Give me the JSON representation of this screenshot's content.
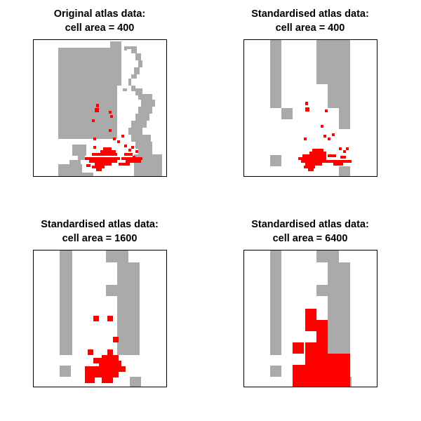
{
  "chart_data": [
    {
      "type": "heatmap",
      "title_line1": "Original atlas data:",
      "title_line2": "cell area = 400",
      "xlabel": "",
      "ylabel": "",
      "grid": false,
      "legend": "none",
      "colors": {
        "absent": "#aaaaaa",
        "present": "#ff0000",
        "background": "#ffffff",
        "frame": "#000000"
      },
      "cell_size": 20,
      "extent": {
        "xmin": 0,
        "xmax": 190,
        "ymin": 0,
        "ymax": 195
      },
      "absent_cells": [
        [
          36,
          12,
          84,
          130
        ],
        [
          110,
          3,
          16,
          63
        ],
        [
          130,
          10,
          10,
          4
        ],
        [
          130,
          14,
          4,
          2
        ],
        [
          140,
          10,
          8,
          10
        ],
        [
          146,
          20,
          8,
          10
        ],
        [
          150,
          30,
          6,
          10
        ],
        [
          144,
          40,
          8,
          10
        ],
        [
          140,
          50,
          8,
          6
        ],
        [
          136,
          56,
          4,
          10
        ],
        [
          100,
          70,
          10,
          6
        ],
        [
          128,
          70,
          6,
          4
        ],
        [
          140,
          66,
          6,
          8
        ],
        [
          146,
          70,
          10,
          10
        ],
        [
          150,
          78,
          20,
          8
        ],
        [
          154,
          86,
          20,
          10
        ],
        [
          150,
          96,
          20,
          10
        ],
        [
          146,
          106,
          20,
          10
        ],
        [
          140,
          116,
          22,
          10
        ],
        [
          136,
          126,
          20,
          10
        ],
        [
          140,
          136,
          28,
          10
        ],
        [
          146,
          146,
          24,
          10
        ],
        [
          150,
          156,
          20,
          8
        ],
        [
          56,
          150,
          20,
          16
        ],
        [
          64,
          166,
          10,
          6
        ],
        [
          52,
          172,
          16,
          6
        ],
        [
          36,
          178,
          34,
          18
        ],
        [
          144,
          164,
          40,
          32
        ],
        [
          70,
          190,
          16,
          6
        ]
      ],
      "present_cells": [
        [
          90,
          92,
          4,
          5
        ],
        [
          88,
          98,
          6,
          6
        ],
        [
          108,
          102,
          4,
          4
        ],
        [
          110,
          108,
          4,
          4
        ],
        [
          84,
          114,
          4,
          4
        ],
        [
          108,
          128,
          4,
          4
        ],
        [
          86,
          140,
          4,
          4
        ],
        [
          114,
          140,
          4,
          4
        ],
        [
          126,
          136,
          4,
          4
        ],
        [
          120,
          144,
          4,
          4
        ],
        [
          86,
          152,
          4,
          4
        ],
        [
          100,
          154,
          12,
          4
        ],
        [
          96,
          158,
          22,
          4
        ],
        [
          84,
          162,
          36,
          4
        ],
        [
          110,
          160,
          8,
          4
        ],
        [
          130,
          150,
          4,
          4
        ],
        [
          136,
          156,
          4,
          4
        ],
        [
          130,
          162,
          12,
          4
        ],
        [
          74,
          168,
          50,
          4
        ],
        [
          126,
          168,
          30,
          4
        ],
        [
          80,
          172,
          40,
          4
        ],
        [
          132,
          172,
          14,
          4
        ],
        [
          146,
          172,
          8,
          4
        ],
        [
          88,
          176,
          24,
          4
        ],
        [
          122,
          176,
          16,
          4
        ],
        [
          84,
          180,
          18,
          4
        ],
        [
          90,
          184,
          8,
          4
        ],
        [
          76,
          178,
          6,
          4
        ],
        [
          140,
          152,
          4,
          4
        ],
        [
          146,
          158,
          4,
          4
        ],
        [
          142,
          166,
          4,
          4
        ]
      ]
    },
    {
      "type": "heatmap",
      "title_line1": "Standardised atlas data:",
      "title_line2": "cell area = 400",
      "xlabel": "",
      "ylabel": "",
      "grid": false,
      "legend": "none",
      "colors": {
        "absent": "#aaaaaa",
        "present": "#ff0000",
        "background": "#ffffff",
        "frame": "#000000"
      },
      "cell_size": 20,
      "extent": {
        "xmin": 0,
        "xmax": 190,
        "ymin": 0,
        "ymax": 195
      },
      "absent_cells": [
        [
          38,
          0,
          16,
          98
        ],
        [
          54,
          98,
          16,
          16
        ],
        [
          104,
          0,
          16,
          48
        ],
        [
          120,
          0,
          32,
          98
        ],
        [
          104,
          48,
          16,
          16
        ],
        [
          136,
          98,
          16,
          30
        ],
        [
          38,
          165,
          16,
          16
        ],
        [
          136,
          181,
          16,
          14
        ]
      ],
      "present_cells": [
        [
          88,
          89,
          4,
          5
        ],
        [
          88,
          97,
          6,
          6
        ],
        [
          116,
          100,
          4,
          4
        ],
        [
          110,
          122,
          4,
          4
        ],
        [
          86,
          140,
          4,
          4
        ],
        [
          114,
          136,
          4,
          4
        ],
        [
          126,
          134,
          4,
          4
        ],
        [
          120,
          140,
          4,
          4
        ],
        [
          98,
          156,
          16,
          4
        ],
        [
          94,
          160,
          24,
          4
        ],
        [
          84,
          164,
          34,
          4
        ],
        [
          78,
          168,
          40,
          4
        ],
        [
          82,
          172,
          42,
          4
        ],
        [
          88,
          176,
          24,
          4
        ],
        [
          86,
          180,
          16,
          4
        ],
        [
          92,
          184,
          8,
          4
        ],
        [
          120,
          164,
          12,
          4
        ],
        [
          124,
          172,
          30,
          4
        ],
        [
          138,
          166,
          8,
          4
        ],
        [
          128,
          176,
          14,
          4
        ],
        [
          142,
          158,
          4,
          4
        ],
        [
          136,
          154,
          4,
          4
        ],
        [
          146,
          154,
          4,
          4
        ]
      ]
    },
    {
      "type": "heatmap",
      "title_line1": "Standardised atlas data:",
      "title_line2": "cell area = 1600",
      "xlabel": "",
      "ylabel": "",
      "grid": false,
      "legend": "none",
      "colors": {
        "absent": "#aaaaaa",
        "present": "#ff0000",
        "background": "#ffffff",
        "frame": "#000000"
      },
      "cell_size": 40,
      "extent": {
        "xmin": 0,
        "xmax": 190,
        "ymin": 0,
        "ymax": 195
      },
      "absent_cells": [
        [
          38,
          0,
          18,
          150
        ],
        [
          104,
          0,
          32,
          18
        ],
        [
          120,
          18,
          32,
          132
        ],
        [
          104,
          50,
          16,
          16
        ],
        [
          38,
          165,
          16,
          16
        ],
        [
          138,
          181,
          16,
          14
        ]
      ],
      "present_cells": [
        [
          86,
          94,
          8,
          8
        ],
        [
          106,
          94,
          8,
          8
        ],
        [
          114,
          124,
          8,
          8
        ],
        [
          78,
          142,
          8,
          8
        ],
        [
          106,
          142,
          8,
          8
        ],
        [
          86,
          154,
          12,
          8
        ],
        [
          98,
          150,
          24,
          8
        ],
        [
          94,
          158,
          32,
          8
        ],
        [
          74,
          166,
          58,
          8
        ],
        [
          74,
          174,
          48,
          8
        ],
        [
          74,
          182,
          14,
          8
        ],
        [
          98,
          182,
          16,
          8
        ]
      ]
    },
    {
      "type": "heatmap",
      "title_line1": "Standardised atlas data:",
      "title_line2": "cell area = 6400",
      "xlabel": "",
      "ylabel": "",
      "grid": false,
      "legend": "none",
      "colors": {
        "absent": "#aaaaaa",
        "present": "#ff0000",
        "background": "#ffffff",
        "frame": "#000000"
      },
      "cell_size": 80,
      "extent": {
        "xmin": 0,
        "xmax": 190,
        "ymin": 0,
        "ymax": 195
      },
      "absent_cells": [
        [
          38,
          0,
          16,
          150
        ],
        [
          104,
          0,
          32,
          18
        ],
        [
          120,
          18,
          32,
          132
        ],
        [
          104,
          50,
          16,
          16
        ],
        [
          38,
          165,
          16,
          16
        ],
        [
          138,
          181,
          16,
          14
        ]
      ],
      "present_cells": [
        [
          88,
          84,
          16,
          16
        ],
        [
          88,
          100,
          32,
          16
        ],
        [
          104,
          116,
          16,
          16
        ],
        [
          70,
          132,
          16,
          16
        ],
        [
          88,
          132,
          32,
          16
        ],
        [
          88,
          148,
          64,
          16
        ],
        [
          70,
          164,
          82,
          31
        ]
      ]
    }
  ]
}
